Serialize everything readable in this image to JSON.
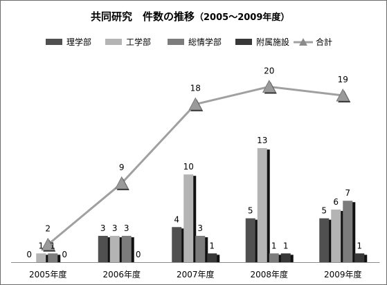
{
  "chart_data": {
    "type": "bar",
    "title": "共同研究　件数の推移",
    "title_suffix": "（2005～2009年度）",
    "categories": [
      "2005年度",
      "2006年度",
      "2007年度",
      "2008年度",
      "2009年度"
    ],
    "series": [
      {
        "name": "理学部",
        "kind": "bar",
        "color": "#505050",
        "values": [
          0,
          3,
          4,
          5,
          5
        ]
      },
      {
        "name": "工学部",
        "kind": "bar",
        "color": "#b4b4b4",
        "values": [
          1,
          3,
          10,
          13,
          6
        ]
      },
      {
        "name": "総情学部",
        "kind": "bar",
        "color": "#7c7c7c",
        "values": [
          1,
          3,
          3,
          1,
          7
        ]
      },
      {
        "name": "附属施設",
        "kind": "bar",
        "color": "#383838",
        "values": [
          0,
          0,
          1,
          1,
          1
        ]
      },
      {
        "name": "合計",
        "kind": "line",
        "color": "#a0a0a0",
        "marker": "triangle",
        "values": [
          2,
          9,
          18,
          20,
          19
        ]
      }
    ],
    "ylim": [
      0,
      22
    ],
    "grid": false,
    "legend_position": "top",
    "data_labels": true
  }
}
